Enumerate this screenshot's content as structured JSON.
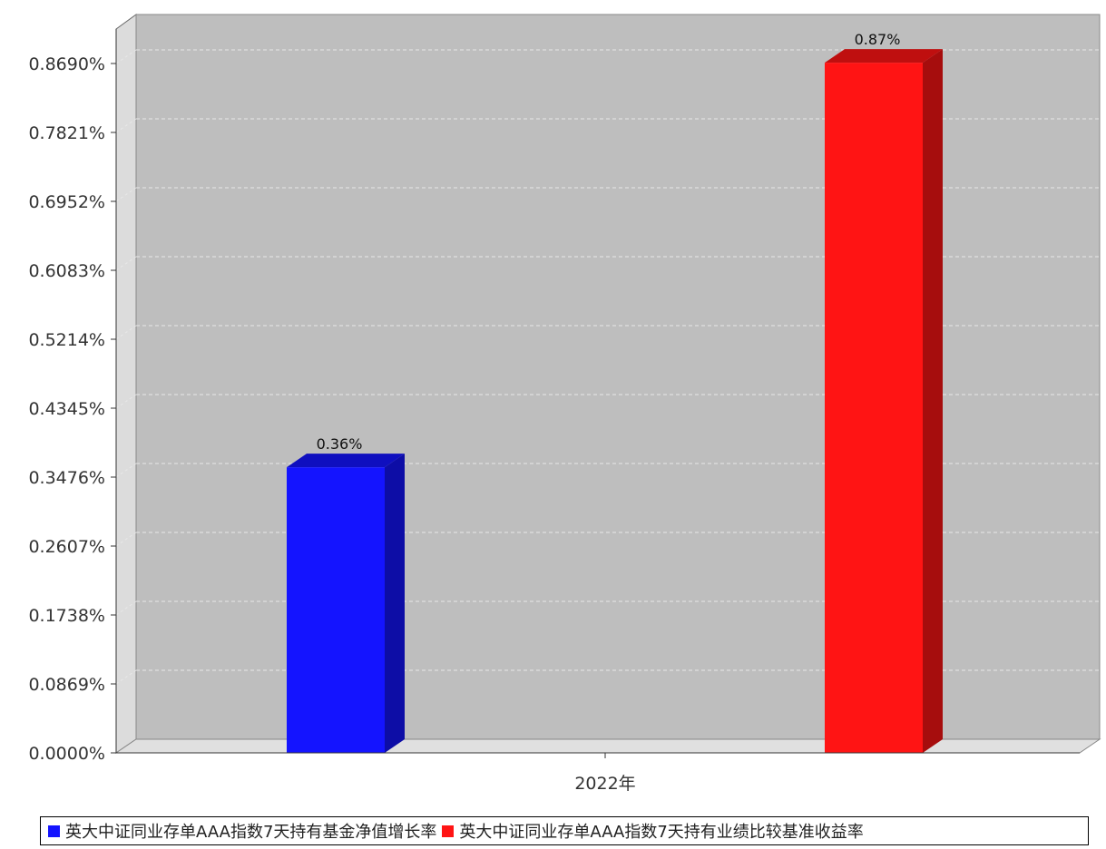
{
  "chart_data": {
    "type": "bar",
    "categories": [
      "2022年"
    ],
    "series": [
      {
        "name": "英大中证同业存单AAA指数7天持有基金净值增长率",
        "values": [
          0.36
        ],
        "label": "0.36%",
        "color": "#1414ff"
      },
      {
        "name": "英大中证同业存单AAA指数7天持有业绩比较基准收益率",
        "values": [
          0.87
        ],
        "label": "0.87%",
        "color": "#ff1414"
      }
    ],
    "ylim": [
      0,
      0.869
    ],
    "yticks": [
      "0.0000%",
      "0.0869%",
      "0.1738%",
      "0.2607%",
      "0.3476%",
      "0.4345%",
      "0.5214%",
      "0.6083%",
      "0.6952%",
      "0.7821%",
      "0.8690%"
    ],
    "grid": true,
    "legend_position": "bottom"
  }
}
